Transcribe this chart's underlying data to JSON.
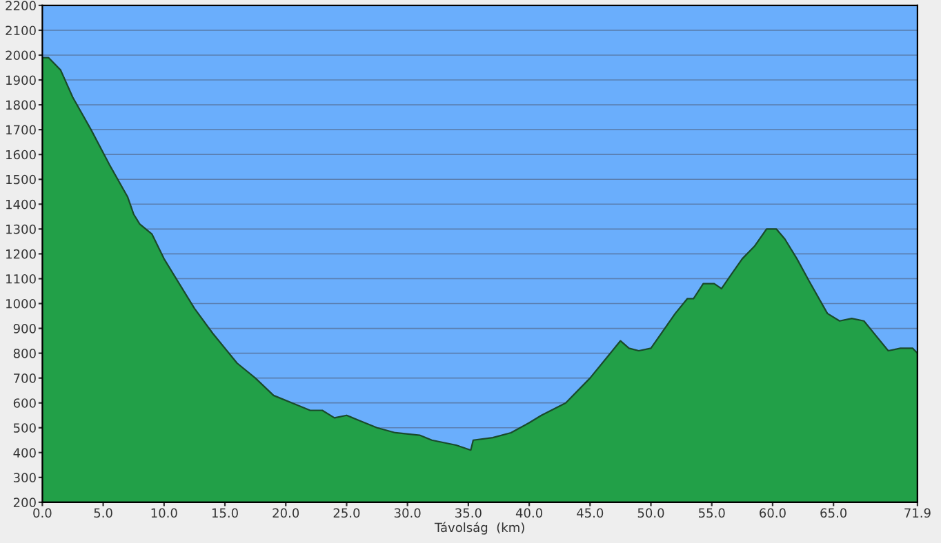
{
  "chart_data": {
    "type": "area",
    "xlabel": "Távolság  (km)",
    "x": [
      0,
      0.5,
      1.5,
      2.5,
      4,
      5.5,
      7,
      7.5,
      8,
      9,
      10,
      11.5,
      12.5,
      14,
      16,
      17.5,
      19,
      21,
      22,
      23,
      24,
      25,
      26,
      27.5,
      29,
      31,
      32,
      34,
      35.2,
      35.4,
      37,
      38.5,
      40,
      41,
      43,
      45,
      46.5,
      47.5,
      48.2,
      49,
      50,
      51,
      52,
      53,
      53.5,
      54.3,
      55.2,
      55.8,
      56.5,
      57.5,
      58.5,
      59.5,
      60.3,
      61,
      62,
      63,
      64.5,
      65.5,
      66.5,
      67.5,
      68.5,
      69.5,
      70.5,
      71.5,
      71.9
    ],
    "series": [
      {
        "color": "#22a048",
        "values": [
          1990,
          1990,
          1940,
          1830,
          1700,
          1560,
          1430,
          1360,
          1320,
          1280,
          1180,
          1060,
          980,
          880,
          760,
          700,
          630,
          590,
          570,
          570,
          540,
          550,
          530,
          500,
          480,
          470,
          450,
          430,
          410,
          450,
          460,
          480,
          520,
          550,
          600,
          700,
          790,
          850,
          820,
          810,
          820,
          890,
          960,
          1020,
          1020,
          1080,
          1080,
          1060,
          1110,
          1180,
          1230,
          1300,
          1300,
          1260,
          1180,
          1090,
          960,
          930,
          940,
          930,
          870,
          810,
          820,
          820,
          800
        ]
      }
    ],
    "xlim": [
      0,
      71.9
    ],
    "ylim": [
      200,
      2200
    ],
    "xticks": [
      {
        "value": 0,
        "label": "0.0"
      },
      {
        "value": 5,
        "label": "5.0"
      },
      {
        "value": 10,
        "label": "10.0"
      },
      {
        "value": 15,
        "label": "15.0"
      },
      {
        "value": 20,
        "label": "20.0"
      },
      {
        "value": 25,
        "label": "25.0"
      },
      {
        "value": 30,
        "label": "30.0"
      },
      {
        "value": 35,
        "label": "35.0"
      },
      {
        "value": 40,
        "label": "40.0"
      },
      {
        "value": 45,
        "label": "45.0"
      },
      {
        "value": 50,
        "label": "50.0"
      },
      {
        "value": 55,
        "label": "55.0"
      },
      {
        "value": 60,
        "label": "60.0"
      },
      {
        "value": 65,
        "label": "65.0"
      },
      {
        "value": 71.9,
        "label": "71.9"
      }
    ],
    "yticks": [
      200,
      300,
      400,
      500,
      600,
      700,
      800,
      900,
      1000,
      1100,
      1200,
      1300,
      1400,
      1500,
      1600,
      1700,
      1800,
      1900,
      2000,
      2100,
      2200
    ],
    "grid": "y"
  }
}
